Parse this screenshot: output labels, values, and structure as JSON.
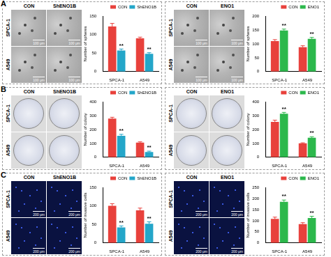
{
  "panels": [
    {
      "label": "A",
      "groups": [
        {
          "column_labels": [
            "CON",
            "ShENO1B"
          ],
          "row_labels": [
            "SPCA-1",
            "A549"
          ],
          "scale_bar": "100 μm"
        },
        {
          "column_labels": [
            "CON",
            "ENO1"
          ],
          "row_labels": [
            "SPCA-1",
            "A549"
          ],
          "scale_bar": "100 μm"
        }
      ]
    },
    {
      "label": "B",
      "groups": [
        {
          "column_labels": [
            "CON",
            "ShENO1B"
          ],
          "row_labels": [
            "SPCA-1",
            "A549"
          ]
        },
        {
          "column_labels": [
            "CON",
            "ENO1"
          ],
          "row_labels": [
            "SPCA-1",
            "A549"
          ]
        }
      ]
    },
    {
      "label": "C",
      "groups": [
        {
          "column_labels": [
            "CON",
            "ShENO1B"
          ],
          "row_labels": [
            "SPCA-1",
            "A549"
          ],
          "scale_bar": "200 μm"
        },
        {
          "column_labels": [
            "CON",
            "ENO1"
          ],
          "row_labels": [
            "SPCA-1",
            "A549"
          ],
          "scale_bar": "200 μm"
        }
      ]
    }
  ],
  "chart_data": [
    {
      "type": "bar",
      "y_label": "Number of spheres",
      "categories": [
        "SPCA-1",
        "A549"
      ],
      "series": [
        {
          "name": "CON",
          "color": "#e8413c",
          "values": [
            122,
            90
          ],
          "errors": [
            8,
            3
          ]
        },
        {
          "name": "ShENO1B",
          "color": "#24a6c9",
          "values": [
            57,
            48
          ],
          "errors": [
            4,
            3
          ],
          "significance": [
            "**",
            "**"
          ]
        }
      ],
      "ylim": [
        0,
        150
      ],
      "yticks": [
        0,
        50,
        100,
        150
      ],
      "grid": false,
      "legend": "top-right"
    },
    {
      "type": "bar",
      "y_label": "Number of spheres",
      "categories": [
        "SPCA-1",
        "A549"
      ],
      "series": [
        {
          "name": "CON",
          "color": "#e8413c",
          "values": [
            110,
            88
          ],
          "errors": [
            5,
            5
          ]
        },
        {
          "name": "ENO1",
          "color": "#2cb84c",
          "values": [
            148,
            118
          ],
          "errors": [
            5,
            5
          ],
          "significance": [
            "**",
            "**"
          ]
        }
      ],
      "ylim": [
        0,
        200
      ],
      "yticks": [
        0,
        50,
        100,
        150,
        200
      ],
      "grid": false,
      "legend": "top-right"
    },
    {
      "type": "bar",
      "y_label": "Number of colony",
      "categories": [
        "SPCA-1",
        "A549"
      ],
      "series": [
        {
          "name": "CON",
          "color": "#e8413c",
          "values": [
            278,
            105
          ],
          "errors": [
            10,
            6
          ]
        },
        {
          "name": "ShENO1B",
          "color": "#24a6c9",
          "values": [
            155,
            38
          ],
          "errors": [
            10,
            6
          ],
          "significance": [
            "**",
            "**"
          ]
        }
      ],
      "ylim": [
        0,
        400
      ],
      "yticks": [
        0,
        100,
        200,
        300,
        400
      ],
      "grid": false,
      "legend": "top-right"
    },
    {
      "type": "bar",
      "y_label": "Number of colony",
      "categories": [
        "SPCA-1",
        "A549"
      ],
      "series": [
        {
          "name": "CON",
          "color": "#e8413c",
          "values": [
            255,
            100
          ],
          "errors": [
            12,
            4
          ]
        },
        {
          "name": "ENO1",
          "color": "#2cb84c",
          "values": [
            313,
            140
          ],
          "errors": [
            10,
            8
          ],
          "significance": [
            "**",
            "**"
          ]
        }
      ],
      "ylim": [
        0,
        400
      ],
      "yticks": [
        0,
        100,
        200,
        300,
        400
      ],
      "grid": false,
      "legend": "top-right"
    },
    {
      "type": "bar",
      "y_label": "Number of invasive cells",
      "categories": [
        "SPCA-1",
        "A549"
      ],
      "series": [
        {
          "name": "CON",
          "color": "#e8413c",
          "values": [
            100,
            88
          ],
          "errors": [
            6,
            6
          ]
        },
        {
          "name": "ShENO1B",
          "color": "#24a6c9",
          "values": [
            42,
            52
          ],
          "errors": [
            4,
            5
          ],
          "significance": [
            "**",
            "**"
          ]
        }
      ],
      "ylim": [
        0,
        150
      ],
      "yticks": [
        0,
        50,
        100,
        150
      ],
      "grid": false,
      "legend": "top-right"
    },
    {
      "type": "bar",
      "y_label": "Number of invasive cells",
      "categories": [
        "SPCA-1",
        "A549"
      ],
      "series": [
        {
          "name": "CON",
          "color": "#e8413c",
          "values": [
            108,
            85
          ],
          "errors": [
            8,
            6
          ]
        },
        {
          "name": "ENO1",
          "color": "#2cb84c",
          "values": [
            185,
            112
          ],
          "errors": [
            8,
            8
          ],
          "significance": [
            "**",
            "**"
          ]
        }
      ],
      "ylim": [
        0,
        250
      ],
      "yticks": [
        0,
        50,
        100,
        150,
        200,
        250
      ],
      "grid": false,
      "legend": "top-right"
    }
  ]
}
